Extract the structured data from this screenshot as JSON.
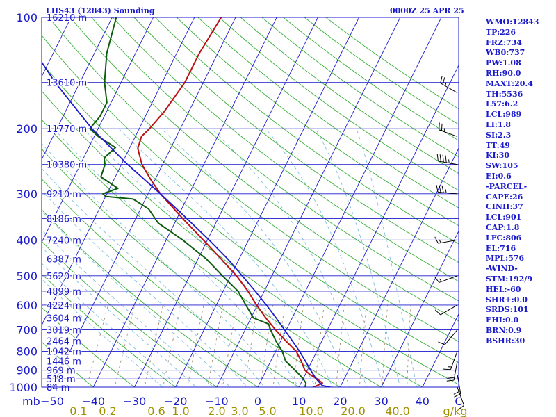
{
  "header": {
    "station": "LHS43 (12843) Sounding",
    "time": "0000Z 25 APR 25"
  },
  "indices": [
    "WMO:12843",
    "TP:226",
    "FRZ:734",
    "WB0:737",
    "PW:1.08",
    "RH:90.0",
    "MAXT:20.4",
    "TH:5536",
    "L57:6.2",
    "LCL:989",
    "LI:1.8",
    "SI:2.3",
    "TT:49",
    "KI:30",
    "SW:105",
    "EI:0.6",
    "-PARCEL-",
    "CAPE:26",
    "CINH:37",
    "LCL:901",
    "CAP:1.8",
    "LFC:806",
    "EL:716",
    "MPL:576",
    "-WIND-",
    "STM:192/9",
    "HEL:-60",
    "SHR+:0.0",
    "SRDS:101",
    "EHI:0.0",
    "BRN:0.9",
    "BSHR:30"
  ],
  "colors": {
    "isobar": "#1a1acc",
    "isotherm": "#1a1acc",
    "dry_adiabat": "#3ab03a",
    "moist_adiabat": "#7fbfe0",
    "mixing_ratio": "#a08060",
    "temperature": "#bb1111",
    "dewpoint": "#0d5c0d",
    "parcel": "#1a1acc",
    "text": "#1a1acc",
    "bottom_labels": "#a09000"
  },
  "chart_data": {
    "type": "line",
    "diagram": "skew-T log-P",
    "y_unit": "mb",
    "x_unit": "C",
    "pressure_levels": [
      100,
      200,
      300,
      400,
      500,
      600,
      700,
      800,
      900,
      1000
    ],
    "temperature_ticks": [
      -50,
      -40,
      -30,
      -20,
      -10,
      0,
      10,
      20,
      30,
      40
    ],
    "x_axis_end_label": "C",
    "y_axis_corner_label": "mb",
    "mixing_ratio_labels": [
      "0.1",
      "0.2",
      "0.6",
      "1.0",
      "2.0",
      "3.0",
      "5.0",
      "10.0",
      "20.0",
      "40.0"
    ],
    "mixing_ratio_unit": "g/kg",
    "height_labels": [
      {
        "p": 100,
        "label": "16210 m"
      },
      {
        "p": 150,
        "label": "13610 m"
      },
      {
        "p": 200,
        "label": "11770 m"
      },
      {
        "p": 250,
        "label": "10380 m"
      },
      {
        "p": 300,
        "label": "9210 m"
      },
      {
        "p": 350,
        "label": "8186 m"
      },
      {
        "p": 400,
        "label": "7240 m"
      },
      {
        "p": 450,
        "label": "6387 m"
      },
      {
        "p": 500,
        "label": "5620 m"
      },
      {
        "p": 550,
        "label": "4899 m"
      },
      {
        "p": 600,
        "label": "4224 m"
      },
      {
        "p": 650,
        "label": "3604 m"
      },
      {
        "p": 700,
        "label": "3019 m"
      },
      {
        "p": 750,
        "label": "2464 m"
      },
      {
        "p": 800,
        "label": "1942 m"
      },
      {
        "p": 850,
        "label": "1446 m"
      },
      {
        "p": 900,
        "label": "969 m"
      },
      {
        "p": 950,
        "label": "518 m"
      },
      {
        "p": 1000,
        "label": "84 m"
      }
    ],
    "series": [
      {
        "key": "temperature",
        "points": [
          [
            1005,
            12.8
          ],
          [
            1000,
            13.6
          ],
          [
            975,
            15.2
          ],
          [
            950,
            13.4
          ],
          [
            925,
            11.2
          ],
          [
            900,
            9.4
          ],
          [
            850,
            7.4
          ],
          [
            800,
            5.0
          ],
          [
            750,
            1.2
          ],
          [
            700,
            -2.6
          ],
          [
            650,
            -6.4
          ],
          [
            600,
            -10.2
          ],
          [
            550,
            -14.0
          ],
          [
            500,
            -18.6
          ],
          [
            450,
            -24.4
          ],
          [
            400,
            -31.0
          ],
          [
            350,
            -38.6
          ],
          [
            300,
            -47.0
          ],
          [
            275,
            -51.0
          ],
          [
            250,
            -55.0
          ],
          [
            226,
            -58.0
          ],
          [
            210,
            -58.5
          ],
          [
            200,
            -57.5
          ],
          [
            180,
            -56.0
          ],
          [
            150,
            -54.5
          ],
          [
            125,
            -54.5
          ],
          [
            100,
            -53.5
          ]
        ]
      },
      {
        "key": "dewpoint",
        "points": [
          [
            1005,
            10.5
          ],
          [
            1000,
            11.5
          ],
          [
            975,
            11.2
          ],
          [
            950,
            10.0
          ],
          [
            925,
            8.6
          ],
          [
            900,
            7.0
          ],
          [
            850,
            3.6
          ],
          [
            800,
            1.6
          ],
          [
            750,
            -1.2
          ],
          [
            700,
            -3.8
          ],
          [
            675,
            -5.0
          ],
          [
            650,
            -9.4
          ],
          [
            600,
            -12.8
          ],
          [
            550,
            -16.4
          ],
          [
            500,
            -22.0
          ],
          [
            450,
            -28.0
          ],
          [
            400,
            -36.0
          ],
          [
            360,
            -44.0
          ],
          [
            330,
            -48.0
          ],
          [
            310,
            -53.0
          ],
          [
            305,
            -60.0
          ],
          [
            300,
            -61.0
          ],
          [
            290,
            -58.0
          ],
          [
            270,
            -63.5
          ],
          [
            250,
            -64.0
          ],
          [
            240,
            -65.0
          ],
          [
            225,
            -63.5
          ],
          [
            210,
            -69.0
          ],
          [
            200,
            -72.0
          ],
          [
            185,
            -71.0
          ],
          [
            170,
            -71.0
          ],
          [
            150,
            -74.0
          ],
          [
            125,
            -77.0
          ],
          [
            100,
            -79.0
          ]
        ]
      },
      {
        "key": "parcel",
        "points": [
          [
            1005,
            18.6
          ],
          [
            990,
            15.5
          ],
          [
            975,
            14.6
          ],
          [
            950,
            13.2
          ],
          [
            925,
            12.0
          ],
          [
            900,
            10.8
          ],
          [
            850,
            8.4
          ],
          [
            800,
            5.8
          ],
          [
            750,
            2.8
          ],
          [
            700,
            -0.4
          ],
          [
            650,
            -3.9
          ],
          [
            600,
            -7.8
          ],
          [
            550,
            -12.2
          ],
          [
            500,
            -17.2
          ],
          [
            450,
            -22.8
          ],
          [
            400,
            -29.6
          ],
          [
            350,
            -37.6
          ],
          [
            300,
            -47.0
          ],
          [
            250,
            -58.5
          ],
          [
            200,
            -71.5
          ],
          [
            150,
            -86.0
          ],
          [
            115,
            -98.0
          ]
        ]
      }
    ],
    "wind_barbs": [
      {
        "p": 160,
        "dir": 300,
        "speed": 25
      },
      {
        "p": 210,
        "dir": 290,
        "speed": 25
      },
      {
        "p": 250,
        "dir": 280,
        "speed": 45
      },
      {
        "p": 300,
        "dir": 275,
        "speed": 35
      },
      {
        "p": 400,
        "dir": 260,
        "speed": 15
      },
      {
        "p": 500,
        "dir": 250,
        "speed": 15
      },
      {
        "p": 600,
        "dir": 240,
        "speed": 10
      },
      {
        "p": 700,
        "dir": 220,
        "speed": 10
      },
      {
        "p": 800,
        "dir": 200,
        "speed": 15
      },
      {
        "p": 850,
        "dir": 190,
        "speed": 25
      },
      {
        "p": 925,
        "dir": 170,
        "speed": 20
      },
      {
        "p": 1000,
        "dir": 160,
        "speed": 10
      }
    ]
  }
}
